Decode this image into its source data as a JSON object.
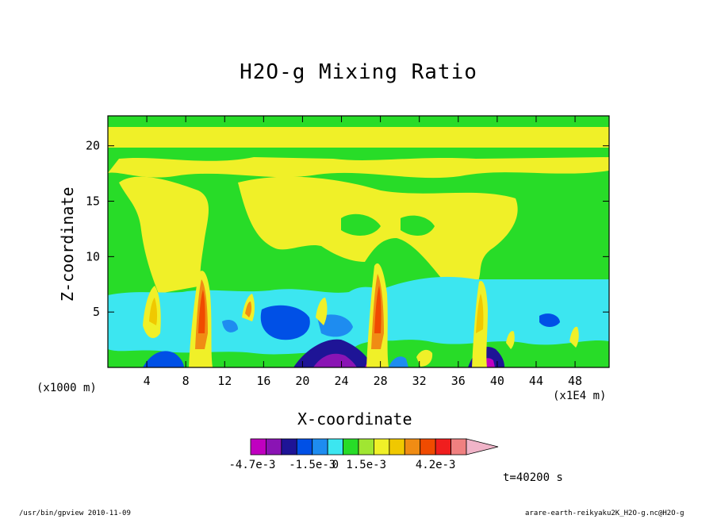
{
  "chart_data": {
    "type": "heatmap",
    "title": "H2O-g Mixing Ratio",
    "xlabel": "X-coordinate",
    "ylabel": "Z-coordinate",
    "x_units_left": "(x1000 m)",
    "x_units_right": "(x1E4 m)",
    "xlim": [
      0,
      51.5
    ],
    "ylim": [
      0,
      22.7
    ],
    "x_ticks": [
      4,
      8,
      12,
      16,
      20,
      24,
      28,
      32,
      36,
      40,
      44,
      48
    ],
    "y_ticks": [
      5,
      10,
      15,
      20
    ],
    "colorbar": {
      "colors": [
        "#c000c0",
        "#8a14b4",
        "#1e1496",
        "#0050e6",
        "#1e8cf0",
        "#3ce6f0",
        "#28dc28",
        "#a0e632",
        "#f0f028",
        "#f0c800",
        "#f08c14",
        "#f04b00",
        "#f01e1e",
        "#f08080",
        "#f0b4c8"
      ],
      "labels": [
        "-4.7e-3",
        "-1.5e-3",
        "0",
        "1.5e-3",
        "4.2e-3"
      ]
    },
    "background_level_color": "#28dc28",
    "anomaly_fields": [
      {
        "name": "upper-moist-band",
        "x": [
          0,
          51.5
        ],
        "z": [
          19.5,
          22
        ],
        "level": "#f0f028"
      },
      {
        "name": "mid-dry-layer",
        "x": [
          0,
          51.5
        ],
        "z": [
          2,
          7
        ],
        "level": "#3ce6f0"
      },
      {
        "name": "anvil-1",
        "x": [
          1,
          13
        ],
        "z": [
          6,
          17
        ],
        "level": "#f0f028"
      },
      {
        "name": "anvil-2",
        "x": [
          16,
          40
        ],
        "z": [
          10,
          17
        ],
        "level": "#f0f028"
      },
      {
        "name": "convective-core-1",
        "x": [
          8.5,
          10.5
        ],
        "z": [
          0,
          9
        ],
        "level": "#f04b00"
      },
      {
        "name": "convective-core-2",
        "x": [
          27,
          29
        ],
        "z": [
          0,
          9
        ],
        "level": "#f04b00"
      },
      {
        "name": "convective-core-3",
        "x": [
          37.5,
          39
        ],
        "z": [
          0,
          6
        ],
        "level": "#f0c800"
      },
      {
        "name": "dry-pocket-1",
        "x": [
          20,
          25
        ],
        "z": [
          0,
          2
        ],
        "level": "#1e1496"
      },
      {
        "name": "dry-pocket-2",
        "x": [
          4,
          8
        ],
        "z": [
          0,
          2
        ],
        "level": "#0050e6"
      },
      {
        "name": "dry-pocket-3",
        "x": [
          36,
          39
        ],
        "z": [
          0,
          2
        ],
        "level": "#1e1496"
      }
    ]
  },
  "time_label": "t=40200 s",
  "footer_left": "/usr/bin/gpview  2010-11-09",
  "footer_right": "arare-earth-reikyaku2K_H2O-g.nc@H2O-g"
}
